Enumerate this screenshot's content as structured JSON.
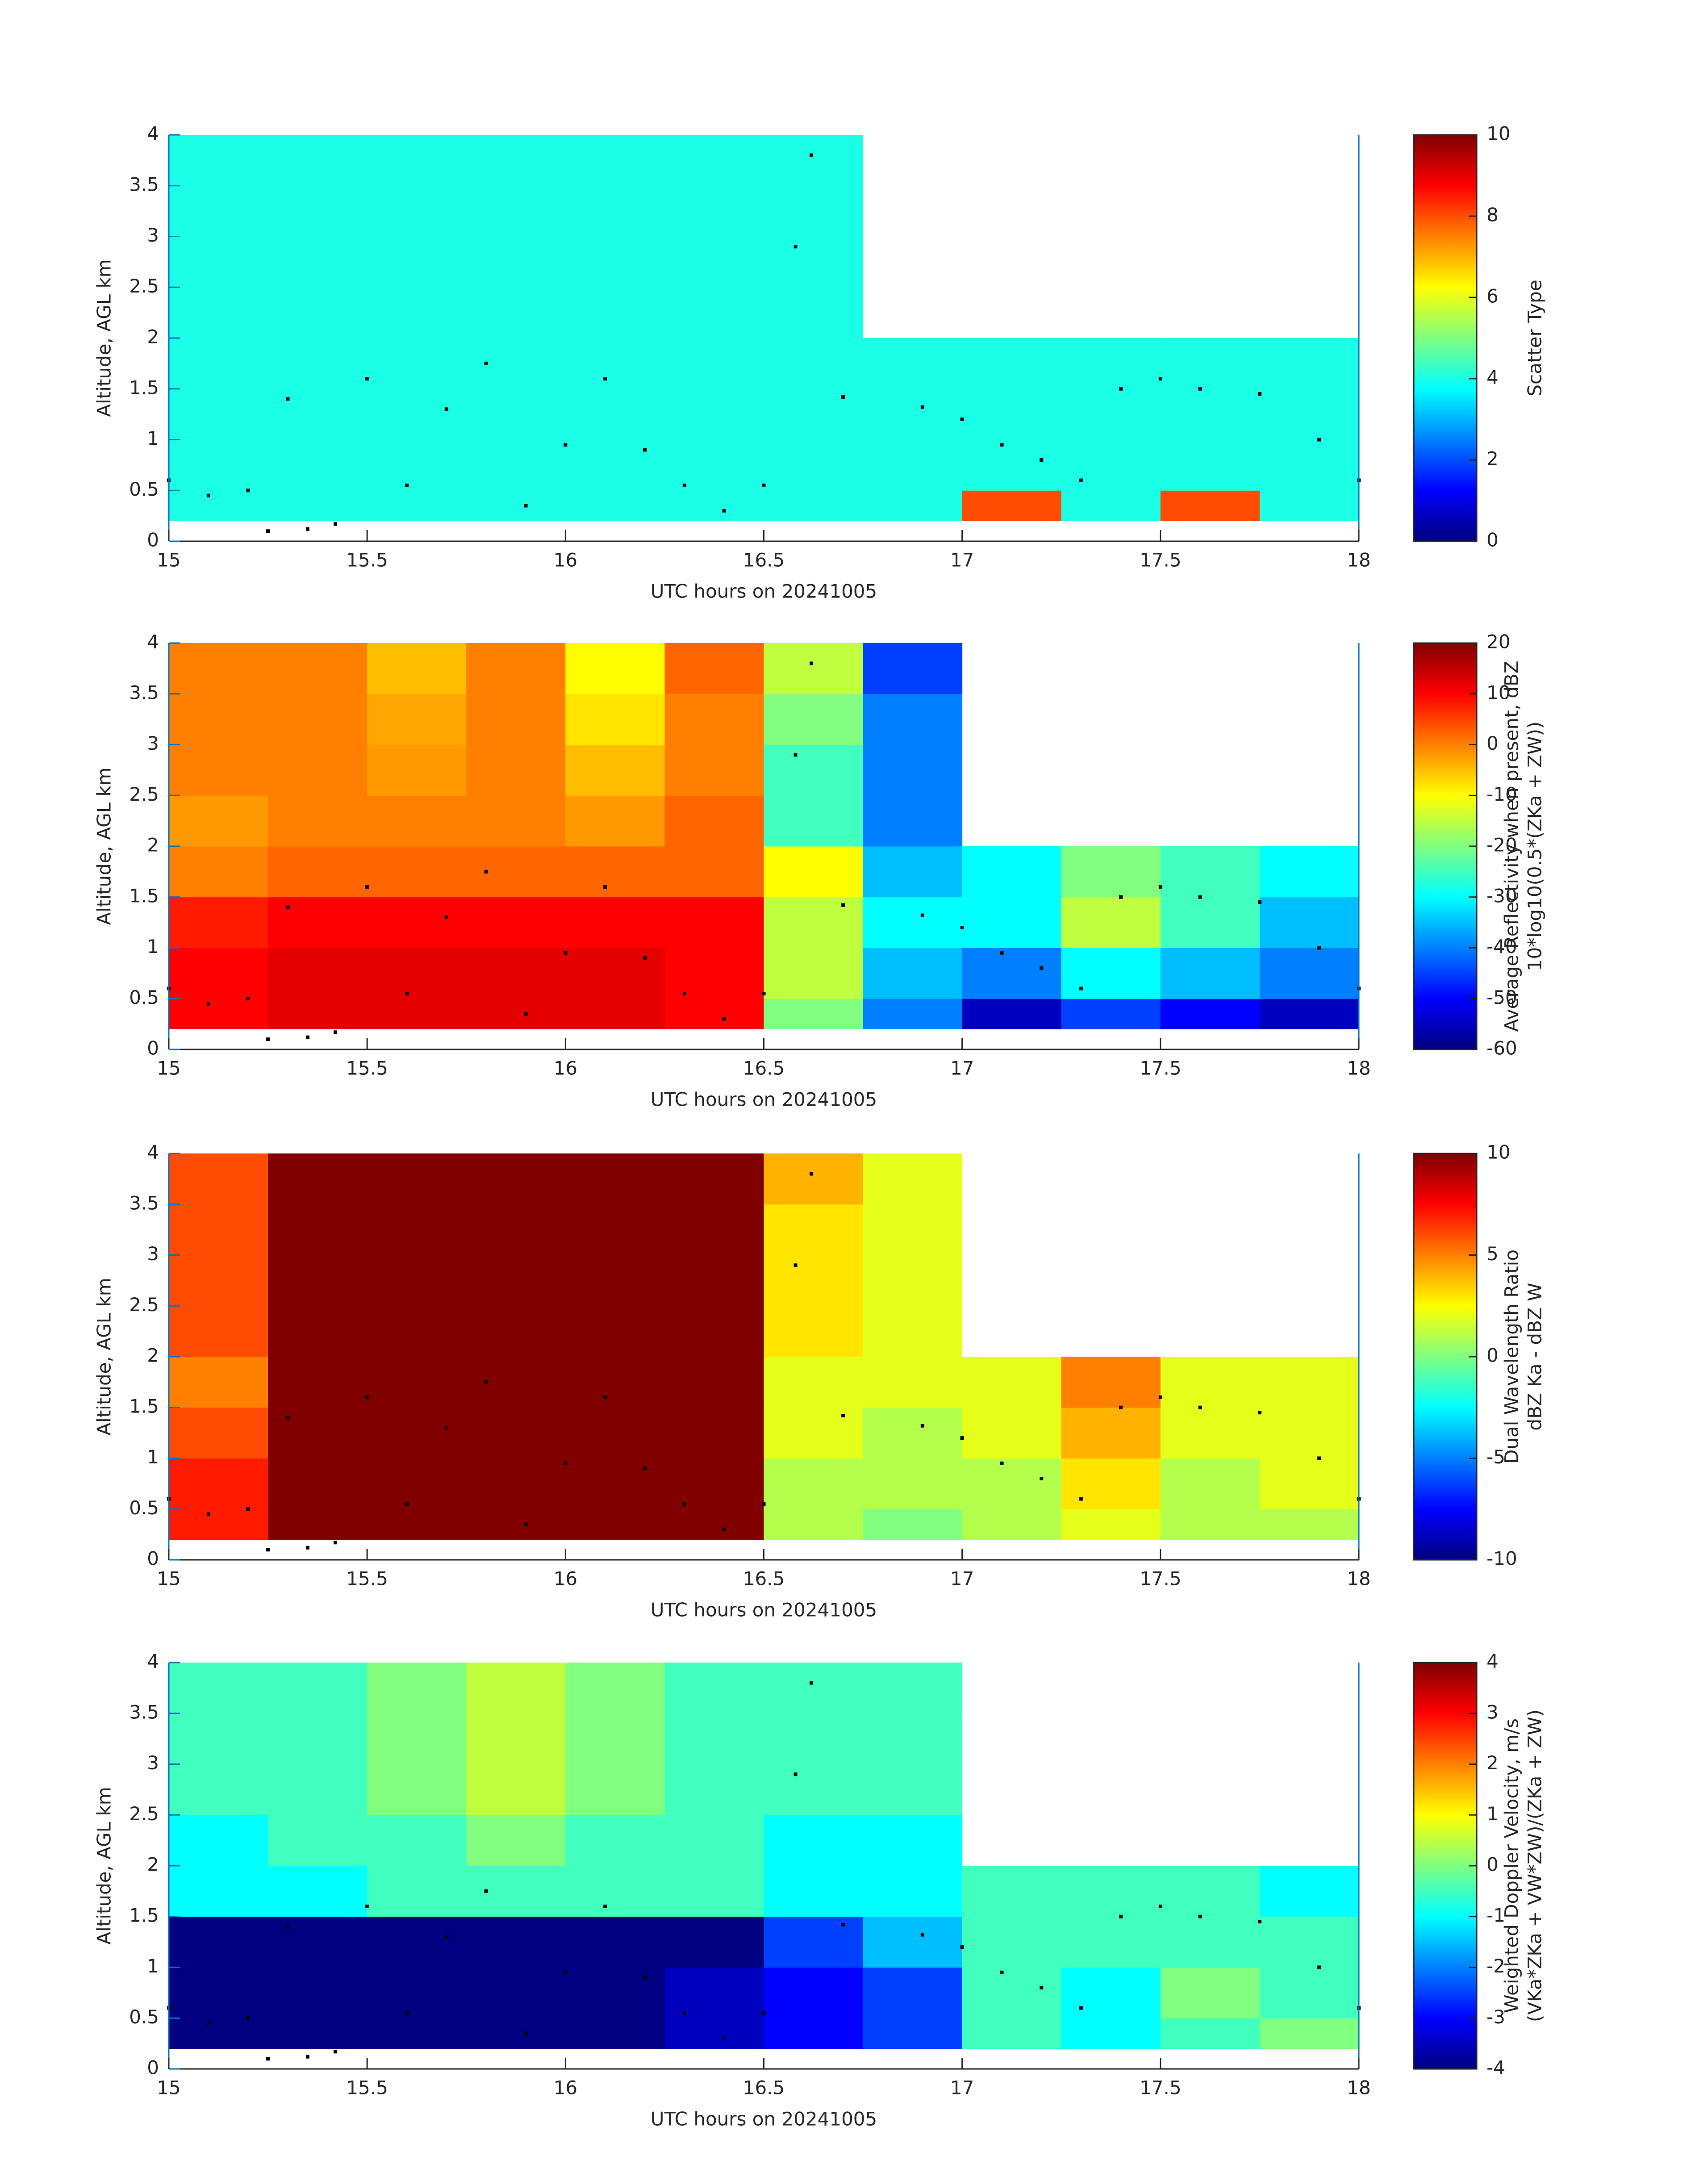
{
  "chart_data": [
    {
      "type": "heatmap",
      "xlabel": "UTC hours on 20241005",
      "ylabel": "Altitude, AGL km",
      "xlim": [
        15,
        18
      ],
      "ylim": [
        0,
        4
      ],
      "xticks": [
        15,
        15.5,
        16,
        16.5,
        17,
        17.5,
        18
      ],
      "yticks": [
        0,
        0.5,
        1,
        1.5,
        2,
        2.5,
        3,
        3.5,
        4
      ],
      "x_edges": [
        15,
        15.25,
        15.5,
        15.75,
        16,
        16.25,
        16.5,
        16.75,
        17,
        17.25,
        17.5,
        17.75,
        18
      ],
      "y_edges": [
        0.2,
        0.5,
        1,
        1.5,
        2,
        2.5,
        3,
        3.5,
        4
      ],
      "z": [
        [
          4,
          4,
          4,
          4,
          4,
          4,
          4,
          4,
          8,
          4,
          8,
          4
        ],
        [
          4,
          4,
          4,
          4,
          4,
          4,
          4,
          4,
          4,
          4,
          4,
          4
        ],
        [
          4,
          4,
          4,
          4,
          4,
          4,
          4,
          4,
          4,
          4,
          4,
          4
        ],
        [
          4,
          4,
          4,
          4,
          4,
          4,
          4,
          4,
          4,
          4,
          4,
          4
        ],
        [
          4,
          4,
          4,
          4,
          4,
          4,
          4,
          null,
          null,
          null,
          null,
          null
        ],
        [
          4,
          4,
          4,
          4,
          4,
          4,
          4,
          null,
          null,
          null,
          null,
          null
        ],
        [
          4,
          4,
          4,
          4,
          4,
          4,
          4,
          null,
          null,
          null,
          null,
          null
        ],
        [
          4,
          4,
          4,
          4,
          4,
          4,
          4,
          null,
          null,
          null,
          null,
          null
        ]
      ],
      "colormap": "jet",
      "clim": [
        0,
        10
      ],
      "cticks": [
        0,
        2,
        4,
        6,
        8,
        10
      ],
      "clabel": [
        "Scatter Type"
      ],
      "points": {
        "color": "#000000",
        "x": [
          15,
          15.1,
          15.2,
          15.25,
          15.3,
          15.35,
          15.42,
          15.5,
          15.6,
          15.7,
          15.8,
          15.9,
          16,
          16.1,
          16.2,
          16.3,
          16.4,
          16.5,
          16.58,
          16.62,
          16.7,
          16.9,
          17,
          17.1,
          17.2,
          17.3,
          17.4,
          17.5,
          17.6,
          17.75,
          17.9,
          18
        ],
        "y": [
          0.6,
          0.45,
          0.5,
          0.1,
          1.4,
          0.12,
          0.17,
          1.6,
          0.55,
          1.3,
          1.75,
          0.35,
          0.95,
          1.6,
          0.9,
          0.55,
          0.3,
          0.55,
          2.9,
          3.8,
          1.42,
          1.32,
          1.2,
          0.95,
          0.8,
          0.6,
          1.5,
          1.6,
          1.5,
          1.45,
          1,
          0.6
        ]
      }
    },
    {
      "type": "heatmap",
      "xlabel": "UTC hours on 20241005",
      "ylabel": "Altitude, AGL km",
      "xlim": [
        15,
        18
      ],
      "ylim": [
        0,
        4
      ],
      "xticks": [
        15,
        15.5,
        16,
        16.5,
        17,
        17.5,
        18
      ],
      "yticks": [
        0,
        0.5,
        1,
        1.5,
        2,
        2.5,
        3,
        3.5,
        4
      ],
      "x_edges": [
        15,
        15.25,
        15.5,
        15.75,
        16,
        16.25,
        16.5,
        16.75,
        17,
        17.25,
        17.5,
        17.75,
        18
      ],
      "y_edges": [
        0.2,
        0.5,
        1,
        1.5,
        2,
        2.5,
        3,
        3.5,
        4
      ],
      "z": [
        [
          10,
          12,
          12,
          12,
          12,
          10,
          -20,
          -40,
          -55,
          -45,
          -50,
          -55
        ],
        [
          10,
          12,
          12,
          12,
          12,
          10,
          -15,
          -35,
          -40,
          -30,
          -35,
          -40
        ],
        [
          8,
          10,
          10,
          10,
          10,
          10,
          -15,
          -30,
          -30,
          -15,
          -25,
          -35
        ],
        [
          0,
          2,
          2,
          2,
          2,
          2,
          -10,
          -35,
          -30,
          -20,
          -25,
          -30
        ],
        [
          -2,
          0,
          0,
          0,
          -2,
          2,
          -25,
          -40,
          null,
          null,
          null,
          null
        ],
        [
          0,
          0,
          -2,
          0,
          -5,
          0,
          -25,
          -40,
          null,
          null,
          null,
          null
        ],
        [
          0,
          0,
          -3,
          0,
          -8,
          0,
          -20,
          -40,
          null,
          null,
          null,
          null
        ],
        [
          0,
          0,
          -5,
          0,
          -10,
          2,
          -15,
          -45,
          null,
          null,
          null,
          null
        ]
      ],
      "colormap": "jet",
      "clim": [
        -60,
        20
      ],
      "cticks": [
        -60,
        -50,
        -40,
        -30,
        -20,
        -10,
        0,
        10,
        20
      ],
      "clabel": [
        "Average Reflectivity when present, dBZ",
        "10*log10(0.5*(ZKa + ZW))"
      ],
      "points": {
        "color": "#000000",
        "x": [
          15,
          15.1,
          15.2,
          15.25,
          15.3,
          15.35,
          15.42,
          15.5,
          15.6,
          15.7,
          15.8,
          15.9,
          16,
          16.1,
          16.2,
          16.3,
          16.4,
          16.5,
          16.58,
          16.62,
          16.7,
          16.9,
          17,
          17.1,
          17.2,
          17.3,
          17.4,
          17.5,
          17.6,
          17.75,
          17.9,
          18
        ],
        "y": [
          0.6,
          0.45,
          0.5,
          0.1,
          1.4,
          0.12,
          0.17,
          1.6,
          0.55,
          1.3,
          1.75,
          0.35,
          0.95,
          1.6,
          0.9,
          0.55,
          0.3,
          0.55,
          2.9,
          3.8,
          1.42,
          1.32,
          1.2,
          0.95,
          0.8,
          0.6,
          1.5,
          1.6,
          1.5,
          1.45,
          1,
          0.6
        ]
      }
    },
    {
      "type": "heatmap",
      "xlabel": "UTC hours on 20241005",
      "ylabel": "Altitude, AGL km",
      "xlim": [
        15,
        18
      ],
      "ylim": [
        0,
        4
      ],
      "xticks": [
        15,
        15.5,
        16,
        16.5,
        17,
        17.5,
        18
      ],
      "yticks": [
        0,
        0.5,
        1,
        1.5,
        2,
        2.5,
        3,
        3.5,
        4
      ],
      "x_edges": [
        15,
        15.25,
        15.5,
        15.75,
        16,
        16.25,
        16.5,
        16.75,
        17,
        17.25,
        17.5,
        17.75,
        18
      ],
      "y_edges": [
        0.2,
        0.5,
        1,
        1.5,
        2,
        2.5,
        3,
        3.5,
        4
      ],
      "z": [
        [
          7,
          10,
          10,
          10,
          10,
          10,
          1,
          0,
          1,
          2,
          1,
          1
        ],
        [
          7,
          10,
          10,
          10,
          10,
          10,
          1,
          1,
          1,
          3,
          1,
          2
        ],
        [
          6,
          10,
          10,
          10,
          10,
          10,
          2,
          1,
          2,
          4,
          2,
          2
        ],
        [
          5,
          10,
          10,
          10,
          10,
          10,
          2,
          2,
          2,
          5,
          2,
          2
        ],
        [
          6,
          10,
          10,
          10,
          10,
          10,
          3,
          2,
          null,
          null,
          null,
          null
        ],
        [
          6,
          10,
          10,
          10,
          10,
          10,
          3,
          2,
          null,
          null,
          null,
          null
        ],
        [
          6,
          10,
          10,
          10,
          10,
          10,
          3,
          2,
          null,
          null,
          null,
          null
        ],
        [
          6,
          10,
          10,
          10,
          10,
          10,
          4,
          2,
          null,
          null,
          null,
          null
        ]
      ],
      "colormap": "jet",
      "clim": [
        -10,
        10
      ],
      "cticks": [
        -10,
        -5,
        0,
        5,
        10
      ],
      "clabel": [
        "Dual Wavelength Ratio",
        "dBZ Ka - dBZ W"
      ],
      "points": {
        "color": "#000000",
        "x": [
          15,
          15.1,
          15.2,
          15.25,
          15.3,
          15.35,
          15.42,
          15.5,
          15.6,
          15.7,
          15.8,
          15.9,
          16,
          16.1,
          16.2,
          16.3,
          16.4,
          16.5,
          16.58,
          16.62,
          16.7,
          16.9,
          17,
          17.1,
          17.2,
          17.3,
          17.4,
          17.5,
          17.6,
          17.75,
          17.9,
          18
        ],
        "y": [
          0.6,
          0.45,
          0.5,
          0.1,
          1.4,
          0.12,
          0.17,
          1.6,
          0.55,
          1.3,
          1.75,
          0.35,
          0.95,
          1.6,
          0.9,
          0.55,
          0.3,
          0.55,
          2.9,
          3.8,
          1.42,
          1.32,
          1.2,
          0.95,
          0.8,
          0.6,
          1.5,
          1.6,
          1.5,
          1.45,
          1,
          0.6
        ]
      }
    },
    {
      "type": "heatmap",
      "xlabel": "UTC hours on 20241005",
      "ylabel": "Altitude, AGL km",
      "xlim": [
        15,
        18
      ],
      "ylim": [
        0,
        4
      ],
      "xticks": [
        15,
        15.5,
        16,
        16.5,
        17,
        17.5,
        18
      ],
      "yticks": [
        0,
        0.5,
        1,
        1.5,
        2,
        2.5,
        3,
        3.5,
        4
      ],
      "x_edges": [
        15,
        15.25,
        15.5,
        15.75,
        16,
        16.25,
        16.5,
        16.75,
        17,
        17.25,
        17.5,
        17.75,
        18
      ],
      "y_edges": [
        0.2,
        0.5,
        1,
        1.5,
        2,
        2.5,
        3,
        3.5,
        4
      ],
      "z": [
        [
          -4,
          -4,
          -4,
          -4,
          -4,
          -3.5,
          -3,
          -2.5,
          -0.5,
          -1,
          -0.5,
          0
        ],
        [
          -4,
          -4,
          -4,
          -4,
          -4,
          -3.5,
          -3,
          -2.5,
          -0.5,
          -1,
          0,
          -0.5
        ],
        [
          -4,
          -4,
          -4,
          -4,
          -4,
          -4,
          -2.5,
          -1.5,
          -0.5,
          -0.5,
          -0.5,
          -0.5
        ],
        [
          -1,
          -1,
          -0.5,
          -0.5,
          -0.5,
          -0.5,
          -1,
          -1,
          -0.5,
          -0.5,
          -0.5,
          -1
        ],
        [
          -1,
          -0.5,
          -0.5,
          0,
          -0.5,
          -0.5,
          -1,
          -1,
          null,
          null,
          null,
          null
        ],
        [
          -0.5,
          -0.5,
          0,
          0.5,
          0,
          -0.5,
          -0.5,
          -0.5,
          null,
          null,
          null,
          null
        ],
        [
          -0.5,
          -0.5,
          0,
          0.5,
          0,
          -0.5,
          -0.5,
          -0.5,
          null,
          null,
          null,
          null
        ],
        [
          -0.5,
          -0.5,
          0,
          0.5,
          0,
          -0.5,
          -0.5,
          -0.5,
          null,
          null,
          null,
          null
        ]
      ],
      "colormap": "jet",
      "clim": [
        -4,
        4
      ],
      "cticks": [
        -4,
        -3,
        -2,
        -1,
        0,
        1,
        2,
        3,
        4
      ],
      "clabel": [
        "Weighted Doppler Velocity, m/s",
        "(VKa*ZKa + VW*ZW)/(ZKa + ZW)"
      ],
      "points": {
        "color": "#000000",
        "x": [
          15,
          15.1,
          15.2,
          15.25,
          15.3,
          15.35,
          15.42,
          15.5,
          15.6,
          15.7,
          15.8,
          15.9,
          16,
          16.1,
          16.2,
          16.3,
          16.4,
          16.5,
          16.58,
          16.62,
          16.7,
          16.9,
          17,
          17.1,
          17.2,
          17.3,
          17.4,
          17.5,
          17.6,
          17.75,
          17.9,
          18
        ],
        "y": [
          0.6,
          0.45,
          0.5,
          0.1,
          1.4,
          0.12,
          0.17,
          1.6,
          0.55,
          1.3,
          1.75,
          0.35,
          0.95,
          1.6,
          0.9,
          0.55,
          0.3,
          0.55,
          2.9,
          3.8,
          1.42,
          1.32,
          1.2,
          0.95,
          0.8,
          0.6,
          1.5,
          1.6,
          1.5,
          1.45,
          1,
          0.6
        ]
      }
    }
  ]
}
